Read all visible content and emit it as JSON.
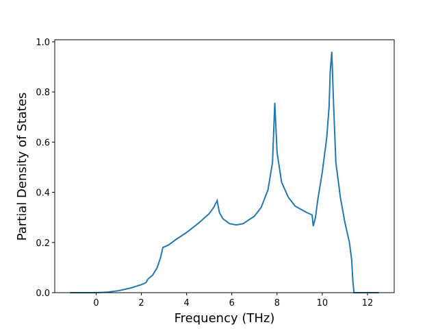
{
  "chart_data": {
    "type": "line",
    "xlabel": "Frequency (THz)",
    "ylabel": "Partial Density of States",
    "x": [
      -1.15,
      0,
      0.5,
      1,
      1.5,
      2,
      2.2,
      2.3,
      2.5,
      2.7,
      2.85,
      2.95,
      3.2,
      3.5,
      4,
      4.5,
      5,
      5.2,
      5.35,
      5.45,
      5.6,
      5.9,
      6.2,
      6.5,
      7,
      7.3,
      7.6,
      7.8,
      7.9,
      8.0,
      8.2,
      8.5,
      8.8,
      9.0,
      9.3,
      9.55,
      9.6,
      9.7,
      9.8,
      10.0,
      10.2,
      10.3,
      10.35,
      10.42,
      10.5,
      10.6,
      10.8,
      11.0,
      11.2,
      11.3,
      11.35,
      11.4,
      12.5
    ],
    "values": [
      0,
      0,
      0.002,
      0.008,
      0.018,
      0.032,
      0.04,
      0.055,
      0.07,
      0.1,
      0.14,
      0.18,
      0.19,
      0.21,
      0.24,
      0.275,
      0.315,
      0.34,
      0.367,
      0.32,
      0.295,
      0.275,
      0.27,
      0.275,
      0.305,
      0.34,
      0.41,
      0.52,
      0.757,
      0.56,
      0.44,
      0.38,
      0.345,
      0.335,
      0.32,
      0.31,
      0.265,
      0.3,
      0.37,
      0.48,
      0.62,
      0.74,
      0.88,
      0.96,
      0.75,
      0.52,
      0.38,
      0.28,
      0.2,
      0.13,
      0.05,
      0,
      0
    ],
    "color": "#1f77b4",
    "xlim": [
      -1.83,
      13.18
    ],
    "xticks": [
      0,
      2,
      4,
      6,
      8,
      10,
      12
    ],
    "ylim": [
      0,
      1.008
    ],
    "yticks": [
      {
        "value": 0,
        "label": "0.0"
      },
      {
        "value": 0.2,
        "label": "0.2"
      },
      {
        "value": 0.4,
        "label": "0.4"
      },
      {
        "value": 0.6,
        "label": "0.6"
      },
      {
        "value": 0.8,
        "label": "0.8"
      },
      {
        "value": 1.0,
        "label": "1.0"
      }
    ]
  }
}
